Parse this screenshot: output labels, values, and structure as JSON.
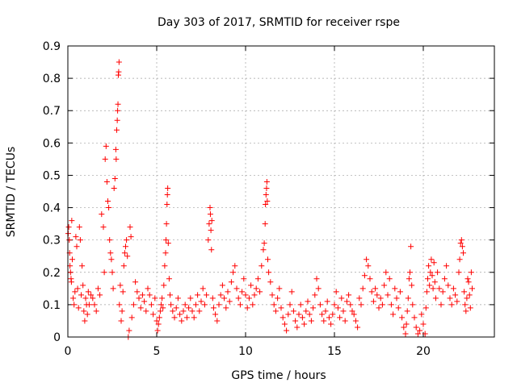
{
  "chart_data": {
    "type": "scatter",
    "title": "Day 303 of 2017, SRMTID for receiver rspe",
    "xlabel": "GPS time / hours",
    "ylabel": "SRMTID / TECUs",
    "xlim": [
      0,
      24
    ],
    "ylim": [
      0,
      0.9
    ],
    "x_ticks": [
      0,
      5,
      10,
      15,
      20
    ],
    "x_tick_labels": [
      "0",
      "5",
      "10",
      "15",
      "20"
    ],
    "y_ticks": [
      0,
      0.1,
      0.2,
      0.3,
      0.4,
      0.5,
      0.6,
      0.7,
      0.8,
      0.9
    ],
    "y_tick_labels": [
      "0",
      "0.1",
      "0.2",
      "0.3",
      "0.4",
      "0.5",
      "0.6",
      "0.7",
      "0.8",
      "0.9"
    ],
    "grid": true,
    "marker": "+",
    "marker_color": "#ff0000",
    "series": [
      {
        "name": "SRMTID",
        "points": [
          [
            0.02,
            0.32
          ],
          [
            0.05,
            0.34
          ],
          [
            0.08,
            0.3
          ],
          [
            0.1,
            0.26
          ],
          [
            0.12,
            0.22
          ],
          [
            0.15,
            0.2
          ],
          [
            0.18,
            0.18
          ],
          [
            0.2,
            0.17
          ],
          [
            0.22,
            0.36
          ],
          [
            0.25,
            0.24
          ],
          [
            0.3,
            0.12
          ],
          [
            0.35,
            0.1
          ],
          [
            0.4,
            0.14
          ],
          [
            0.45,
            0.31
          ],
          [
            0.5,
            0.28
          ],
          [
            0.55,
            0.15
          ],
          [
            0.6,
            0.09
          ],
          [
            0.65,
            0.34
          ],
          [
            0.7,
            0.3
          ],
          [
            0.75,
            0.13
          ],
          [
            0.8,
            0.22
          ],
          [
            0.85,
            0.16
          ],
          [
            0.9,
            0.08
          ],
          [
            0.95,
            0.05
          ],
          [
            1.0,
            0.12
          ],
          [
            1.05,
            0.1
          ],
          [
            1.1,
            0.07
          ],
          [
            1.15,
            0.14
          ],
          [
            1.2,
            0.1
          ],
          [
            1.3,
            0.13
          ],
          [
            1.4,
            0.12
          ],
          [
            1.5,
            0.1
          ],
          [
            1.6,
            0.08
          ],
          [
            1.7,
            0.15
          ],
          [
            1.8,
            0.13
          ],
          [
            1.9,
            0.38
          ],
          [
            2.0,
            0.34
          ],
          [
            2.05,
            0.2
          ],
          [
            2.1,
            0.55
          ],
          [
            2.15,
            0.59
          ],
          [
            2.2,
            0.48
          ],
          [
            2.25,
            0.42
          ],
          [
            2.3,
            0.4
          ],
          [
            2.35,
            0.3
          ],
          [
            2.4,
            0.26
          ],
          [
            2.45,
            0.24
          ],
          [
            2.5,
            0.2
          ],
          [
            2.55,
            0.15
          ],
          [
            2.6,
            0.46
          ],
          [
            2.65,
            0.49
          ],
          [
            2.7,
            0.58
          ],
          [
            2.72,
            0.55
          ],
          [
            2.75,
            0.64
          ],
          [
            2.78,
            0.67
          ],
          [
            2.8,
            0.7
          ],
          [
            2.82,
            0.72
          ],
          [
            2.84,
            0.81
          ],
          [
            2.86,
            0.82
          ],
          [
            2.88,
            0.85
          ],
          [
            2.9,
            0.1
          ],
          [
            2.95,
            0.16
          ],
          [
            3.0,
            0.05
          ],
          [
            3.05,
            0.08
          ],
          [
            3.1,
            0.14
          ],
          [
            3.15,
            0.22
          ],
          [
            3.2,
            0.26
          ],
          [
            3.25,
            0.28
          ],
          [
            3.3,
            0.3
          ],
          [
            3.35,
            0.25
          ],
          [
            3.4,
            0.0
          ],
          [
            3.45,
            0.02
          ],
          [
            3.5,
            0.34
          ],
          [
            3.55,
            0.31
          ],
          [
            3.6,
            0.06
          ],
          [
            3.7,
            0.1
          ],
          [
            3.8,
            0.17
          ],
          [
            3.9,
            0.14
          ],
          [
            4.0,
            0.12
          ],
          [
            4.1,
            0.09
          ],
          [
            4.2,
            0.13
          ],
          [
            4.3,
            0.11
          ],
          [
            4.4,
            0.08
          ],
          [
            4.5,
            0.15
          ],
          [
            4.6,
            0.13
          ],
          [
            4.7,
            0.1
          ],
          [
            4.8,
            0.07
          ],
          [
            4.9,
            0.12
          ],
          [
            5.0,
            0.05
          ],
          [
            5.05,
            0.02
          ],
          [
            5.1,
            0.04
          ],
          [
            5.15,
            0.06
          ],
          [
            5.2,
            0.08
          ],
          [
            5.25,
            0.1
          ],
          [
            5.3,
            0.12
          ],
          [
            5.35,
            0.09
          ],
          [
            5.4,
            0.16
          ],
          [
            5.45,
            0.22
          ],
          [
            5.5,
            0.26
          ],
          [
            5.52,
            0.3
          ],
          [
            5.55,
            0.35
          ],
          [
            5.58,
            0.41
          ],
          [
            5.6,
            0.44
          ],
          [
            5.62,
            0.46
          ],
          [
            5.65,
            0.29
          ],
          [
            5.7,
            0.18
          ],
          [
            5.75,
            0.13
          ],
          [
            5.8,
            0.1
          ],
          [
            5.9,
            0.08
          ],
          [
            6.0,
            0.06
          ],
          [
            6.1,
            0.09
          ],
          [
            6.2,
            0.12
          ],
          [
            6.3,
            0.07
          ],
          [
            6.4,
            0.05
          ],
          [
            6.5,
            0.08
          ],
          [
            6.6,
            0.1
          ],
          [
            6.7,
            0.06
          ],
          [
            6.8,
            0.09
          ],
          [
            6.9,
            0.12
          ],
          [
            7.0,
            0.08
          ],
          [
            7.1,
            0.06
          ],
          [
            7.2,
            0.1
          ],
          [
            7.3,
            0.13
          ],
          [
            7.4,
            0.08
          ],
          [
            7.5,
            0.11
          ],
          [
            7.6,
            0.15
          ],
          [
            7.7,
            0.1
          ],
          [
            7.8,
            0.13
          ],
          [
            7.9,
            0.3
          ],
          [
            7.95,
            0.35
          ],
          [
            8.0,
            0.4
          ],
          [
            8.02,
            0.38
          ],
          [
            8.05,
            0.33
          ],
          [
            8.08,
            0.27
          ],
          [
            8.1,
            0.36
          ],
          [
            8.15,
            0.12
          ],
          [
            8.2,
            0.09
          ],
          [
            8.3,
            0.07
          ],
          [
            8.4,
            0.05
          ],
          [
            8.5,
            0.1
          ],
          [
            8.6,
            0.13
          ],
          [
            8.7,
            0.16
          ],
          [
            8.8,
            0.12
          ],
          [
            8.9,
            0.09
          ],
          [
            9.0,
            0.14
          ],
          [
            9.1,
            0.11
          ],
          [
            9.2,
            0.17
          ],
          [
            9.3,
            0.2
          ],
          [
            9.4,
            0.22
          ],
          [
            9.5,
            0.15
          ],
          [
            9.6,
            0.12
          ],
          [
            9.7,
            0.1
          ],
          [
            9.8,
            0.14
          ],
          [
            9.9,
            0.18
          ],
          [
            10.0,
            0.13
          ],
          [
            10.1,
            0.09
          ],
          [
            10.2,
            0.12
          ],
          [
            10.3,
            0.16
          ],
          [
            10.4,
            0.1
          ],
          [
            10.5,
            0.13
          ],
          [
            10.6,
            0.15
          ],
          [
            10.7,
            0.18
          ],
          [
            10.8,
            0.14
          ],
          [
            10.9,
            0.22
          ],
          [
            11.0,
            0.27
          ],
          [
            11.05,
            0.29
          ],
          [
            11.1,
            0.35
          ],
          [
            11.12,
            0.41
          ],
          [
            11.15,
            0.44
          ],
          [
            11.18,
            0.46
          ],
          [
            11.2,
            0.48
          ],
          [
            11.22,
            0.42
          ],
          [
            11.25,
            0.24
          ],
          [
            11.3,
            0.2
          ],
          [
            11.4,
            0.17
          ],
          [
            11.5,
            0.13
          ],
          [
            11.6,
            0.1
          ],
          [
            11.7,
            0.08
          ],
          [
            11.8,
            0.12
          ],
          [
            11.9,
            0.15
          ],
          [
            12.0,
            0.09
          ],
          [
            12.1,
            0.06
          ],
          [
            12.2,
            0.04
          ],
          [
            12.3,
            0.02
          ],
          [
            12.4,
            0.07
          ],
          [
            12.5,
            0.1
          ],
          [
            12.6,
            0.14
          ],
          [
            12.7,
            0.08
          ],
          [
            12.8,
            0.05
          ],
          [
            12.9,
            0.03
          ],
          [
            13.0,
            0.07
          ],
          [
            13.1,
            0.1
          ],
          [
            13.2,
            0.06
          ],
          [
            13.3,
            0.04
          ],
          [
            13.4,
            0.08
          ],
          [
            13.5,
            0.11
          ],
          [
            13.6,
            0.07
          ],
          [
            13.7,
            0.05
          ],
          [
            13.8,
            0.09
          ],
          [
            13.9,
            0.13
          ],
          [
            14.0,
            0.18
          ],
          [
            14.1,
            0.15
          ],
          [
            14.2,
            0.1
          ],
          [
            14.3,
            0.07
          ],
          [
            14.4,
            0.05
          ],
          [
            14.5,
            0.08
          ],
          [
            14.6,
            0.11
          ],
          [
            14.7,
            0.06
          ],
          [
            14.8,
            0.04
          ],
          [
            14.9,
            0.07
          ],
          [
            15.0,
            0.1
          ],
          [
            15.1,
            0.14
          ],
          [
            15.2,
            0.09
          ],
          [
            15.3,
            0.06
          ],
          [
            15.4,
            0.12
          ],
          [
            15.5,
            0.08
          ],
          [
            15.6,
            0.05
          ],
          [
            15.7,
            0.11
          ],
          [
            15.8,
            0.13
          ],
          [
            15.9,
            0.1
          ],
          [
            16.0,
            0.08
          ],
          [
            16.1,
            0.07
          ],
          [
            16.2,
            0.05
          ],
          [
            16.3,
            0.03
          ],
          [
            16.4,
            0.12
          ],
          [
            16.5,
            0.1
          ],
          [
            16.6,
            0.15
          ],
          [
            16.7,
            0.19
          ],
          [
            16.8,
            0.24
          ],
          [
            16.9,
            0.22
          ],
          [
            17.0,
            0.18
          ],
          [
            17.1,
            0.14
          ],
          [
            17.2,
            0.11
          ],
          [
            17.3,
            0.15
          ],
          [
            17.4,
            0.13
          ],
          [
            17.5,
            0.09
          ],
          [
            17.6,
            0.12
          ],
          [
            17.7,
            0.1
          ],
          [
            17.8,
            0.16
          ],
          [
            17.9,
            0.2
          ],
          [
            18.0,
            0.13
          ],
          [
            18.1,
            0.18
          ],
          [
            18.2,
            0.1
          ],
          [
            18.3,
            0.07
          ],
          [
            18.4,
            0.15
          ],
          [
            18.5,
            0.12
          ],
          [
            18.6,
            0.09
          ],
          [
            18.7,
            0.14
          ],
          [
            18.8,
            0.06
          ],
          [
            18.9,
            0.03
          ],
          [
            19.0,
            0.01
          ],
          [
            19.05,
            0.04
          ],
          [
            19.1,
            0.08
          ],
          [
            19.15,
            0.12
          ],
          [
            19.2,
            0.18
          ],
          [
            19.25,
            0.2
          ],
          [
            19.3,
            0.28
          ],
          [
            19.35,
            0.16
          ],
          [
            19.4,
            0.1
          ],
          [
            19.5,
            0.06
          ],
          [
            19.6,
            0.03
          ],
          [
            19.7,
            0.01
          ],
          [
            19.8,
            0.02
          ],
          [
            19.9,
            0.07
          ],
          [
            20.0,
            0.04
          ],
          [
            20.1,
            0.01
          ],
          [
            20.15,
            0.09
          ],
          [
            20.2,
            0.14
          ],
          [
            20.25,
            0.18
          ],
          [
            20.3,
            0.22
          ],
          [
            20.35,
            0.16
          ],
          [
            20.4,
            0.2
          ],
          [
            20.45,
            0.24
          ],
          [
            20.5,
            0.19
          ],
          [
            20.55,
            0.15
          ],
          [
            20.6,
            0.23
          ],
          [
            20.65,
            0.17
          ],
          [
            20.7,
            0.12
          ],
          [
            20.8,
            0.2
          ],
          [
            20.9,
            0.15
          ],
          [
            21.0,
            0.1
          ],
          [
            21.1,
            0.14
          ],
          [
            21.2,
            0.18
          ],
          [
            21.3,
            0.22
          ],
          [
            21.4,
            0.16
          ],
          [
            21.5,
            0.12
          ],
          [
            21.6,
            0.1
          ],
          [
            21.7,
            0.15
          ],
          [
            21.8,
            0.13
          ],
          [
            21.9,
            0.11
          ],
          [
            22.0,
            0.2
          ],
          [
            22.05,
            0.24
          ],
          [
            22.1,
            0.29
          ],
          [
            22.15,
            0.3
          ],
          [
            22.2,
            0.28
          ],
          [
            22.25,
            0.26
          ],
          [
            22.3,
            0.14
          ],
          [
            22.35,
            0.1
          ],
          [
            22.4,
            0.08
          ],
          [
            22.45,
            0.12
          ],
          [
            22.5,
            0.18
          ],
          [
            22.55,
            0.17
          ],
          [
            22.6,
            0.13
          ],
          [
            22.65,
            0.09
          ],
          [
            22.7,
            0.2
          ],
          [
            22.75,
            0.15
          ]
        ]
      }
    ]
  }
}
